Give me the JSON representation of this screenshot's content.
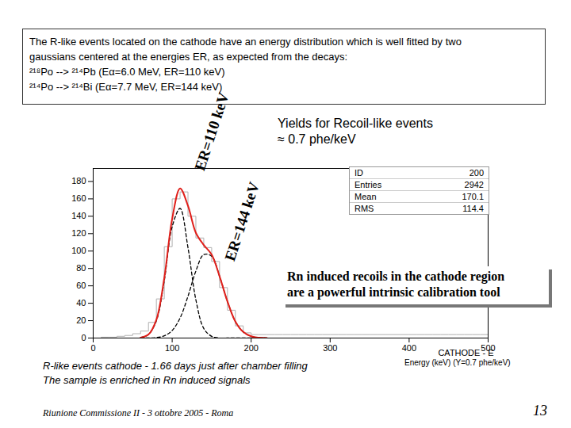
{
  "chart_data": {
    "type": "histogram",
    "title": [
      "The R-like events located on the cathode have an energy distribution which is well fitted by two",
      "gaussians centered at the energies ER, as expected from the decays:",
      "²¹⁸Po --> ²¹⁴Pb (Eα=6.0 MeV, ER=110 keV)",
      "²¹⁴Po --> ²¹⁴Bi (Eα=7.7 MeV, ER=144 keV)"
    ],
    "annotations": {
      "peak1": "ER=110 keV",
      "peak2": "ER=144 keV",
      "yield": [
        "Yields for Recoil-like events",
        "≈ 0.7 phe/keV"
      ],
      "box": [
        "Rn induced recoils in the cathode region",
        "are a powerful intrinsic calibration tool"
      ],
      "caption": [
        "R-like events cathode - 1.66 days just after chamber filling",
        "The sample is enriched in Rn induced signals"
      ],
      "energy": "Energy (keV) (Y=0.7 phe/keV)",
      "footer": "Riunione Commissione II - 3 ottobre 2005 - Roma",
      "page": "13"
    },
    "stats": [
      {
        "label": "ID",
        "value": 200
      },
      {
        "label": "Entries",
        "value": 2942
      },
      {
        "label": "Mean",
        "value": 170.1
      },
      {
        "label": "RMS",
        "value": 114.4
      }
    ],
    "x_label": "CATHODE - E",
    "bins": [
      0,
      10,
      20,
      30,
      40,
      50,
      60,
      70,
      80,
      90,
      100,
      110,
      120,
      130,
      140,
      150,
      160,
      170,
      180,
      190,
      200,
      210,
      220,
      230,
      240,
      250,
      260,
      270,
      280,
      290,
      300,
      310,
      320,
      330,
      340,
      350,
      360,
      370,
      380,
      390,
      400,
      410,
      420,
      430,
      440,
      450,
      460,
      470,
      480,
      490,
      500
    ],
    "counts": [
      0,
      1,
      1,
      2,
      3,
      5,
      8,
      18,
      45,
      105,
      160,
      168,
      140,
      115,
      104,
      88,
      58,
      32,
      14,
      6,
      4,
      4,
      4,
      4,
      4,
      4,
      4,
      4,
      4,
      4,
      4,
      4,
      4,
      4,
      4,
      4,
      4,
      4,
      4,
      4,
      4,
      4,
      4,
      4,
      4,
      4,
      4,
      4,
      4,
      4
    ],
    "color": "#b0b0b0",
    "x": [
      60,
      70,
      80,
      90,
      100,
      110,
      120,
      130,
      140,
      150,
      160,
      170,
      180,
      190,
      200,
      210,
      220
    ],
    "series": [
      {
        "color": "#000000",
        "line_style": "dashed",
        "values": [
          0.5,
          4,
          20,
          66,
          128,
          149,
          104,
          44,
          11,
          2,
          0,
          0,
          0,
          0,
          0,
          0,
          0
        ]
      },
      {
        "color": "#000000",
        "line_style": "dashed",
        "values": [
          0,
          0.1,
          0.6,
          2.6,
          8.7,
          23,
          48,
          77,
          96,
          94,
          71,
          42,
          19,
          7,
          2,
          0.4,
          0
        ]
      },
      {
        "color": "#e0201b",
        "line_style": "solid",
        "values": [
          0.5,
          4,
          21,
          69,
          137,
          172,
          152,
          121,
          107,
          96,
          71,
          42,
          19,
          7,
          2,
          0.4,
          0
        ]
      }
    ],
    "xlim": [
      0,
      500
    ],
    "xticks": [
      0,
      100,
      200,
      300,
      400,
      500
    ],
    "ylim": [
      0,
      195
    ],
    "yticks": [
      0,
      20,
      40,
      60,
      80,
      100,
      120,
      140,
      160,
      180
    ]
  }
}
